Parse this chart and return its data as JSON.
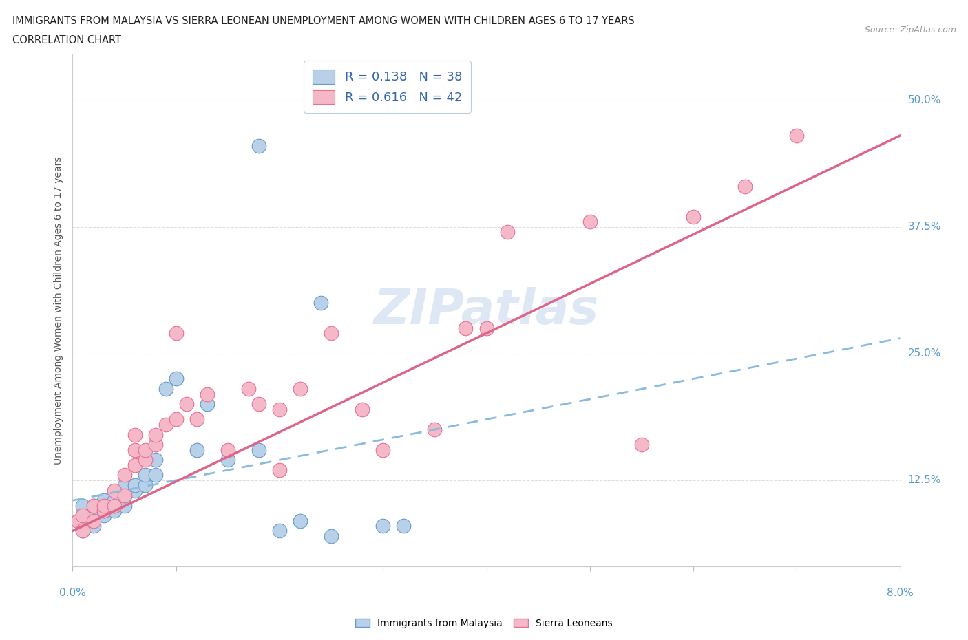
{
  "title_line1": "IMMIGRANTS FROM MALAYSIA VS SIERRA LEONEAN UNEMPLOYMENT AMONG WOMEN WITH CHILDREN AGES 6 TO 17 YEARS",
  "title_line2": "CORRELATION CHART",
  "source": "Source: ZipAtlas.com",
  "ylabel": "Unemployment Among Women with Children Ages 6 to 17 years",
  "ytick_labels": [
    "12.5%",
    "25.0%",
    "37.5%",
    "50.0%"
  ],
  "ytick_values": [
    0.125,
    0.25,
    0.375,
    0.5
  ],
  "xmin": 0.0,
  "xmax": 0.08,
  "ymin": 0.04,
  "ymax": 0.545,
  "watermark": "ZIPatlas",
  "legend_entry1": "R = 0.138   N = 38",
  "legend_entry2": "R = 0.616   N = 42",
  "legend_label1": "Immigrants from Malaysia",
  "legend_label2": "Sierra Leoneans",
  "color_blue": "#b8d0e8",
  "color_pink": "#f4b8c8",
  "color_blue_dark": "#6699cc",
  "color_pink_dark": "#e87090",
  "blue_scatter_x": [
    0.0005,
    0.001,
    0.001,
    0.001,
    0.001,
    0.002,
    0.002,
    0.002,
    0.002,
    0.003,
    0.003,
    0.003,
    0.003,
    0.004,
    0.004,
    0.004,
    0.005,
    0.005,
    0.005,
    0.006,
    0.006,
    0.007,
    0.007,
    0.008,
    0.008,
    0.009,
    0.01,
    0.012,
    0.013,
    0.015,
    0.018,
    0.02,
    0.022,
    0.024,
    0.03,
    0.032,
    0.018,
    0.025
  ],
  "blue_scatter_y": [
    0.085,
    0.075,
    0.08,
    0.09,
    0.1,
    0.08,
    0.09,
    0.095,
    0.1,
    0.09,
    0.095,
    0.1,
    0.105,
    0.095,
    0.1,
    0.105,
    0.1,
    0.11,
    0.12,
    0.115,
    0.12,
    0.12,
    0.13,
    0.13,
    0.145,
    0.215,
    0.225,
    0.155,
    0.2,
    0.145,
    0.155,
    0.075,
    0.085,
    0.3,
    0.08,
    0.08,
    0.455,
    0.07
  ],
  "pink_scatter_x": [
    0.0005,
    0.001,
    0.001,
    0.002,
    0.002,
    0.003,
    0.003,
    0.004,
    0.004,
    0.005,
    0.005,
    0.006,
    0.006,
    0.006,
    0.007,
    0.007,
    0.008,
    0.008,
    0.009,
    0.01,
    0.011,
    0.012,
    0.013,
    0.015,
    0.017,
    0.018,
    0.02,
    0.022,
    0.025,
    0.028,
    0.03,
    0.035,
    0.038,
    0.042,
    0.05,
    0.055,
    0.06,
    0.065,
    0.07,
    0.04,
    0.02,
    0.01
  ],
  "pink_scatter_y": [
    0.085,
    0.075,
    0.09,
    0.085,
    0.1,
    0.095,
    0.1,
    0.1,
    0.115,
    0.11,
    0.13,
    0.14,
    0.155,
    0.17,
    0.145,
    0.155,
    0.16,
    0.17,
    0.18,
    0.27,
    0.2,
    0.185,
    0.21,
    0.155,
    0.215,
    0.2,
    0.195,
    0.215,
    0.27,
    0.195,
    0.155,
    0.175,
    0.275,
    0.37,
    0.38,
    0.16,
    0.385,
    0.415,
    0.465,
    0.275,
    0.135,
    0.185
  ],
  "blue_trend_x": [
    0.0,
    0.08
  ],
  "blue_trend_y": [
    0.105,
    0.265
  ],
  "pink_trend_x": [
    0.0,
    0.08
  ],
  "pink_trend_y": [
    0.075,
    0.465
  ]
}
